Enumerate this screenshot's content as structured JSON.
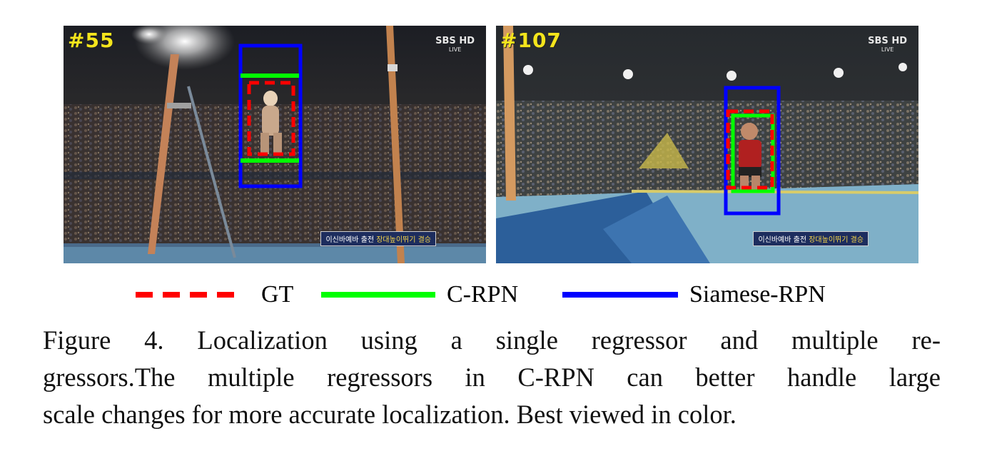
{
  "frames": [
    {
      "number": "#55",
      "logo": "SBS",
      "logo_badge": "HD",
      "logo_sub": "LIVE",
      "ticker_a": "이신바예바 출전",
      "ticker_b": "장대높이뛰기 결승"
    },
    {
      "number": "#107",
      "logo": "SBS",
      "logo_badge": "HD",
      "logo_sub": "LIVE",
      "ticker_a": "이신바예바 출전",
      "ticker_b": "장대높이뛰기 결승"
    }
  ],
  "legend": [
    {
      "label": "GT",
      "color": "#ff0000",
      "style": "dashed"
    },
    {
      "label": "C-RPN",
      "color": "#00ff00",
      "style": "solid"
    },
    {
      "label": "Siamese-RPN",
      "color": "#0000ff",
      "style": "solid"
    }
  ],
  "caption": {
    "line1": "Figure 4. Localization using a single regressor and multiple re-",
    "line2": "gressors.The multiple regressors in C-RPN can better handle large",
    "line3": "scale changes for more accurate localization. Best viewed in color."
  }
}
